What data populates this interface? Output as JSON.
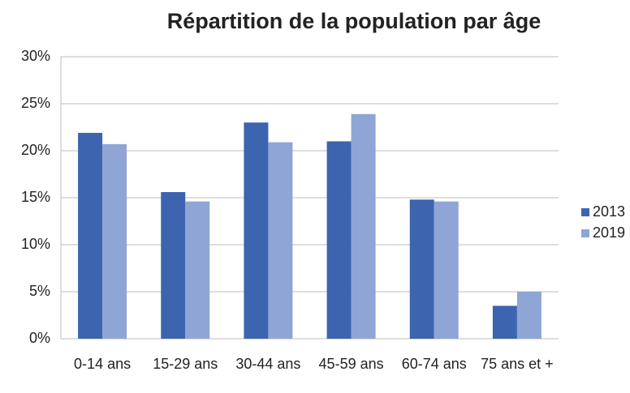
{
  "chart_data": {
    "type": "bar",
    "title": "Répartition de la population par âge",
    "categories": [
      "0-14 ans",
      "15-29 ans",
      "30-44 ans",
      "45-59 ans",
      "60-74 ans",
      "75 ans et +"
    ],
    "series": [
      {
        "name": "2013",
        "color": "#3d64ae",
        "values": [
          21.9,
          15.6,
          23.0,
          21.0,
          14.8,
          3.5
        ]
      },
      {
        "name": "2019",
        "color": "#8fa5d6",
        "values": [
          20.7,
          14.6,
          20.9,
          23.9,
          14.6,
          5.0
        ]
      }
    ],
    "ylim": [
      0,
      30
    ],
    "yticks": [
      {
        "value": 0,
        "label": "0%"
      },
      {
        "value": 5,
        "label": "5%"
      },
      {
        "value": 10,
        "label": "10%"
      },
      {
        "value": 15,
        "label": "15%"
      },
      {
        "value": 20,
        "label": "20%"
      },
      {
        "value": 25,
        "label": "25%"
      },
      {
        "value": 30,
        "label": "30%"
      }
    ],
    "grid": true,
    "legend": "right"
  }
}
